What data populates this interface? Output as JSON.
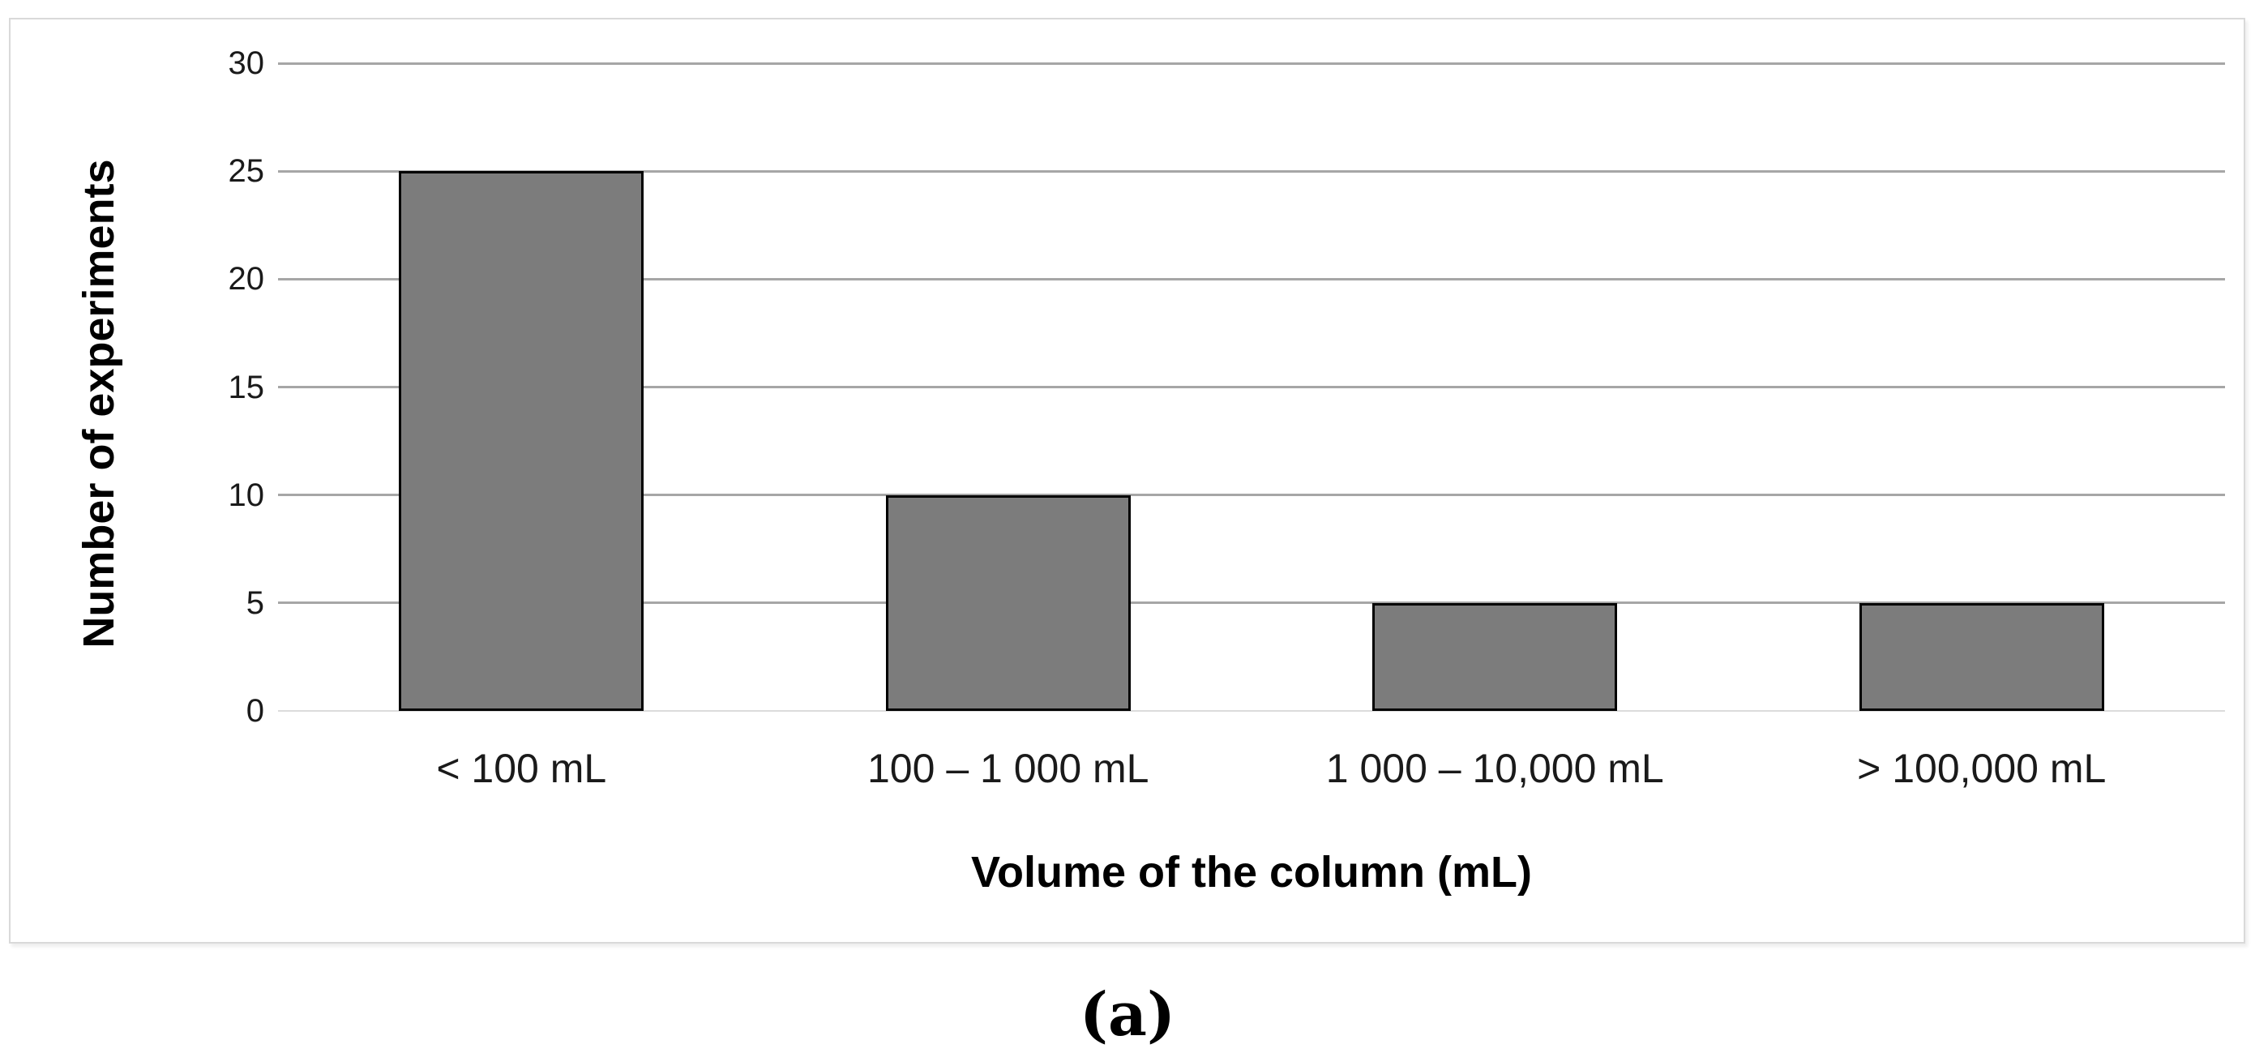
{
  "figure": {
    "caption": "(a)"
  },
  "chart_data": {
    "type": "bar",
    "title": "",
    "categories": [
      "< 100 mL",
      "100 – 1 000 mL",
      "1 000 – 10,000 mL",
      "> 100,000 mL"
    ],
    "values": [
      25,
      10,
      5,
      5
    ],
    "xlabel": "Volume of the column (mL)",
    "ylabel": "Number of experiments",
    "ylim": [
      0,
      30
    ],
    "yticks": [
      0,
      5,
      10,
      15,
      20,
      25,
      30
    ],
    "grid": true,
    "legend_position": "none",
    "bar_color": "#7c7c7c",
    "bar_border_color": "#000000",
    "gridline_color": "#a6a6a6",
    "zero_line_color": "#dcdcdc",
    "frame_border_color": "#d9d9d9",
    "label_color": "#1a1a1a"
  }
}
